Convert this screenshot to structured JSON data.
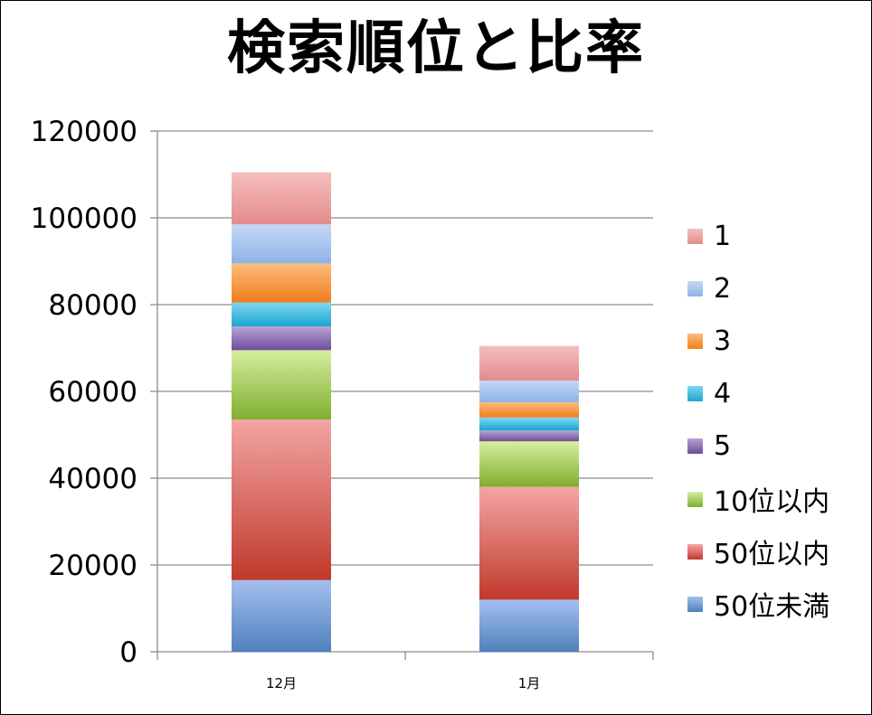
{
  "chart_data": {
    "type": "bar",
    "stacked": true,
    "title": "検索順位と比率",
    "xlabel": "",
    "ylabel": "",
    "categories": [
      "12月",
      "1月"
    ],
    "ylim": [
      0,
      120000
    ],
    "yticks": [
      "0",
      "20000",
      "40000",
      "60000",
      "80000",
      "100000",
      "120000"
    ],
    "grid": true,
    "legend_position": "right",
    "series": [
      {
        "name": "50位未満",
        "values": [
          16500,
          12000
        ],
        "color": "#4f81bd",
        "light": "#a4bff0"
      },
      {
        "name": "50位以内",
        "values": [
          37000,
          26000
        ],
        "color": "#c0392b",
        "light": "#f3a5a5"
      },
      {
        "name": "10位以内",
        "values": [
          16000,
          10500
        ],
        "color": "#7fae2f",
        "light": "#d6ee9f"
      },
      {
        "name": "5",
        "values": [
          5500,
          2500
        ],
        "color": "#6f4c9b",
        "light": "#b9a3d6"
      },
      {
        "name": "4",
        "values": [
          5500,
          3000
        ],
        "color": "#1ba6cf",
        "light": "#7fd6f0"
      },
      {
        "name": "3",
        "values": [
          9000,
          3500
        ],
        "color": "#f07d1a",
        "light": "#fbbd7f"
      },
      {
        "name": "2",
        "values": [
          9000,
          5000
        ],
        "color": "#8fb2e8",
        "light": "#c4d8f6"
      },
      {
        "name": "1",
        "values": [
          12000,
          8000
        ],
        "color": "#e38c8c",
        "light": "#f5bebe"
      }
    ]
  }
}
